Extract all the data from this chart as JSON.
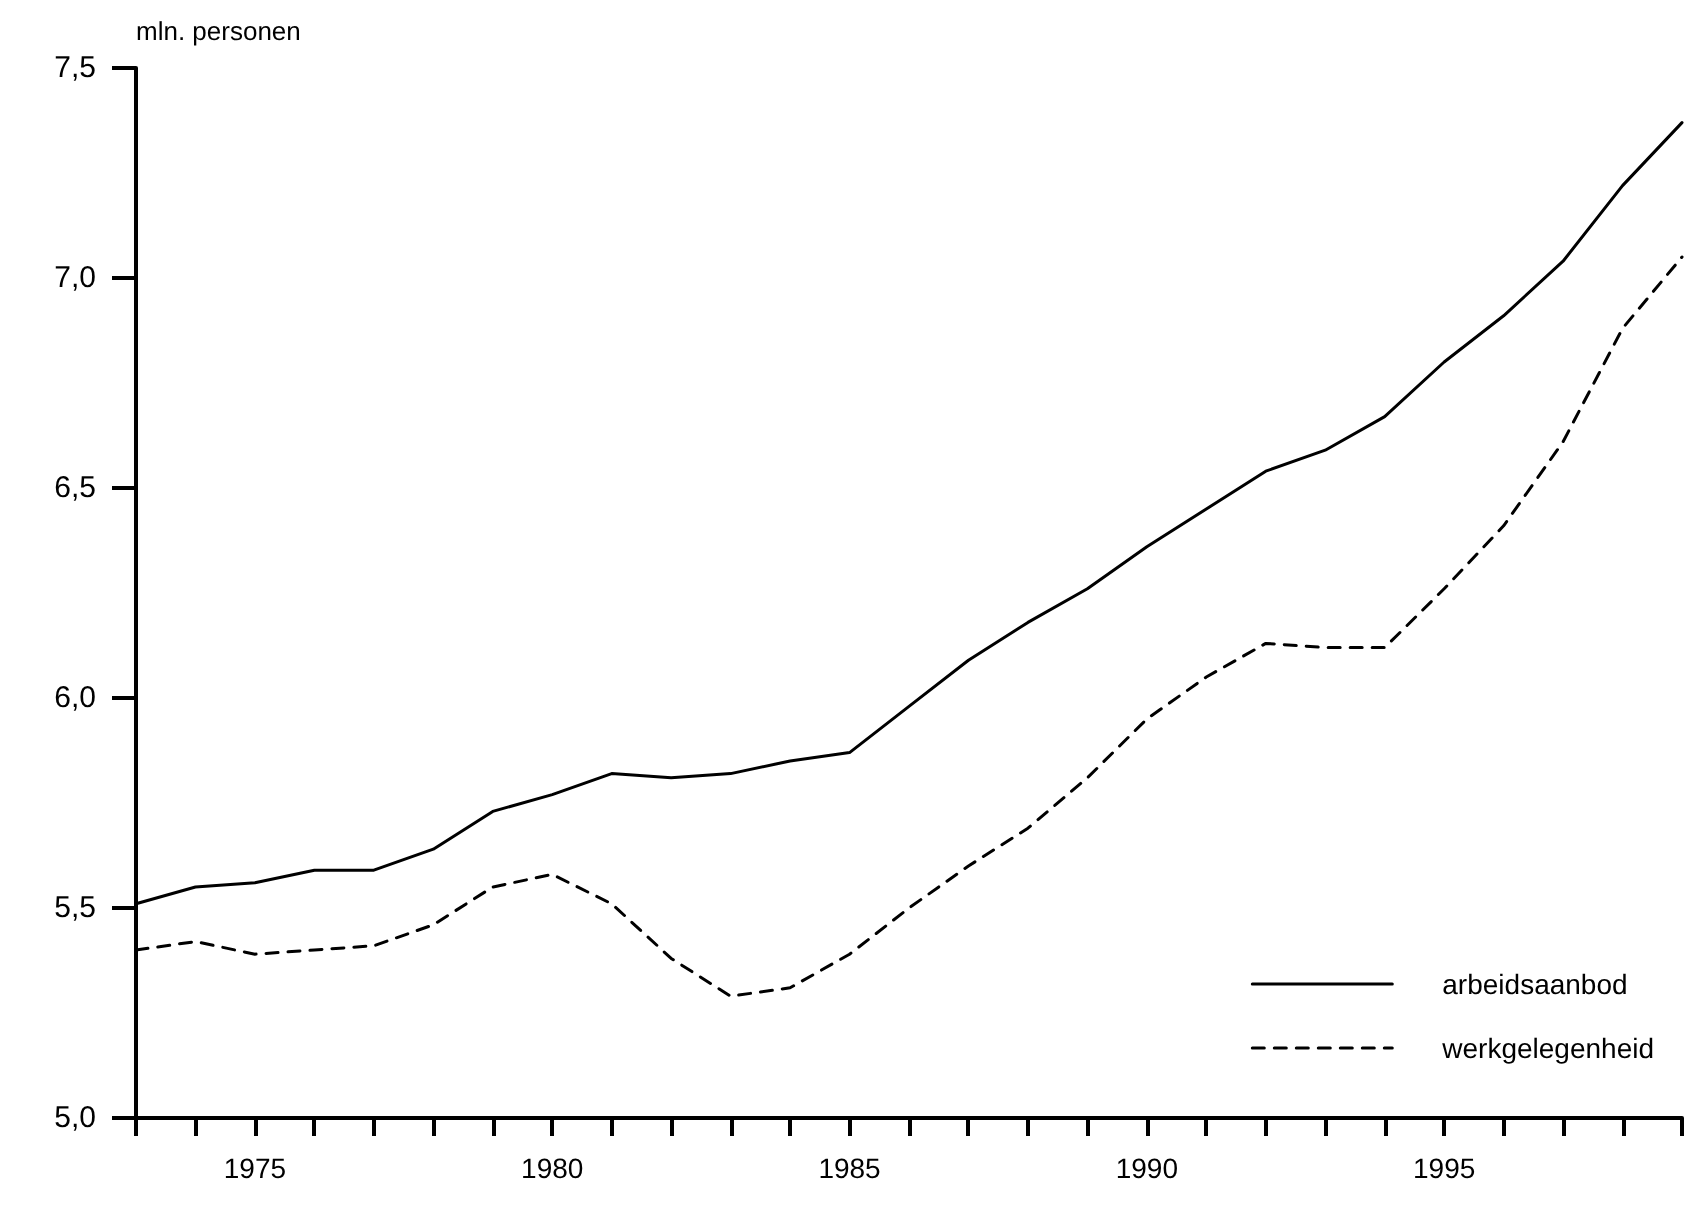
{
  "chart_data": {
    "type": "line",
    "ylabel": "mln. personen",
    "x": [
      1973,
      1974,
      1975,
      1976,
      1977,
      1978,
      1979,
      1980,
      1981,
      1982,
      1983,
      1984,
      1985,
      1986,
      1987,
      1988,
      1989,
      1990,
      1991,
      1992,
      1993,
      1994,
      1995,
      1996,
      1997,
      1998,
      1999
    ],
    "series": [
      {
        "name": "arbeidsaanbod",
        "color": "#000000",
        "line_style": "solid",
        "values": [
          5.51,
          5.55,
          5.56,
          5.59,
          5.59,
          5.64,
          5.73,
          5.77,
          5.82,
          5.81,
          5.82,
          5.85,
          5.87,
          5.98,
          6.09,
          6.18,
          6.26,
          6.36,
          6.45,
          6.54,
          6.59,
          6.67,
          6.8,
          6.91,
          7.04,
          7.22,
          7.37
        ]
      },
      {
        "name": "werkgelegenheid",
        "color": "#000000",
        "line_style": "dashed",
        "values": [
          5.4,
          5.42,
          5.39,
          5.4,
          5.41,
          5.46,
          5.55,
          5.58,
          5.51,
          5.38,
          5.29,
          5.31,
          5.39,
          5.5,
          5.6,
          5.69,
          5.81,
          5.95,
          6.05,
          6.13,
          6.12,
          6.12,
          6.26,
          6.41,
          6.61,
          6.88,
          7.05
        ]
      }
    ],
    "xlim": [
      1973,
      1999
    ],
    "xticks": [
      {
        "value": 1973,
        "label": null
      },
      {
        "value": 1974,
        "label": null
      },
      1975,
      {
        "value": 1976,
        "label": null
      },
      {
        "value": 1977,
        "label": null
      },
      {
        "value": 1978,
        "label": null
      },
      {
        "value": 1979,
        "label": null
      },
      1980,
      {
        "value": 1981,
        "label": null
      },
      {
        "value": 1982,
        "label": null
      },
      {
        "value": 1983,
        "label": null
      },
      {
        "value": 1984,
        "label": null
      },
      1985,
      {
        "value": 1986,
        "label": null
      },
      {
        "value": 1987,
        "label": null
      },
      {
        "value": 1988,
        "label": null
      },
      {
        "value": 1989,
        "label": null
      },
      1990,
      {
        "value": 1991,
        "label": null
      },
      {
        "value": 1992,
        "label": null
      },
      {
        "value": 1993,
        "label": null
      },
      {
        "value": 1994,
        "label": null
      },
      1995,
      {
        "value": 1996,
        "label": null
      },
      {
        "value": 1997,
        "label": null
      },
      {
        "value": 1998,
        "label": null
      },
      {
        "value": 1999,
        "label": null
      }
    ],
    "ylim": [
      5.0,
      7.5
    ],
    "yticks": [
      {
        "value": 5.0,
        "label": "5,0"
      },
      {
        "value": 5.5,
        "label": "5,5"
      },
      {
        "value": 6.0,
        "label": "6,0"
      },
      {
        "value": 6.5,
        "label": "6,5"
      },
      {
        "value": 7.0,
        "label": "7,0"
      },
      {
        "value": 7.5,
        "label": "7,5"
      }
    ],
    "grid": false,
    "legend": "bottom right",
    "marker": "none"
  }
}
